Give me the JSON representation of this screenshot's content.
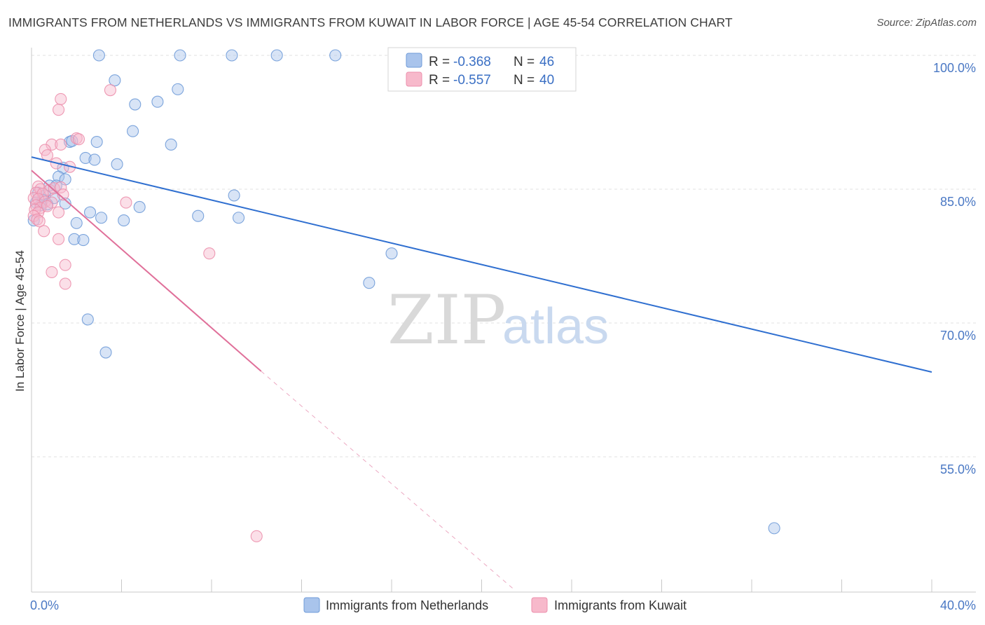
{
  "title": "IMMIGRANTS FROM NETHERLANDS VS IMMIGRANTS FROM KUWAIT IN LABOR FORCE | AGE 45-54 CORRELATION CHART",
  "source": "Source: ZipAtlas.com",
  "watermark": {
    "zip": "ZIP",
    "atlas": "atlas"
  },
  "chart_data": {
    "type": "scatter",
    "ylabel": "In Labor Force | Age 45-54",
    "xlim": [
      0,
      40
    ],
    "ylim": [
      40,
      101
    ],
    "x_tick_labels": [
      {
        "x": 0,
        "label": "0.0%"
      },
      {
        "x": 40,
        "label": "40.0%"
      }
    ],
    "y_tick_labels": [
      {
        "y": 100,
        "label": "100.0%"
      },
      {
        "y": 85,
        "label": "85.0%"
      },
      {
        "y": 70,
        "label": "70.0%"
      },
      {
        "y": 55,
        "label": "55.0%"
      }
    ],
    "grid": true,
    "legend": {
      "placement": "top-center",
      "rows": [
        {
          "r_label": "R =",
          "r_value": "-0.368",
          "n_label": "N =",
          "n_value": "46"
        },
        {
          "r_label": "R =",
          "r_value": "-0.557",
          "n_label": "N =",
          "n_value": "40"
        }
      ]
    },
    "series": [
      {
        "name": "Immigrants from Netherlands",
        "color": "#a9c4ec",
        "stroke": "#6f9bd8",
        "trend_color": "#2f6fd0",
        "trend": {
          "x0": 0,
          "y0": 88.6,
          "x1": 40,
          "y1": 64.5
        },
        "points": [
          [
            3.0,
            100
          ],
          [
            6.6,
            100
          ],
          [
            8.9,
            100
          ],
          [
            10.9,
            100
          ],
          [
            13.5,
            100
          ],
          [
            3.7,
            97.2
          ],
          [
            6.5,
            96.2
          ],
          [
            4.6,
            94.5
          ],
          [
            5.6,
            94.8
          ],
          [
            4.5,
            91.5
          ],
          [
            1.7,
            90.3
          ],
          [
            1.8,
            90.4
          ],
          [
            2.9,
            90.3
          ],
          [
            6.2,
            90
          ],
          [
            2.4,
            88.5
          ],
          [
            2.8,
            88.3
          ],
          [
            3.8,
            87.8
          ],
          [
            1.4,
            87.4
          ],
          [
            1.2,
            86.4
          ],
          [
            1.5,
            86.1
          ],
          [
            0.8,
            85.4
          ],
          [
            1.1,
            85.4
          ],
          [
            0.3,
            84.6
          ],
          [
            0.6,
            84.3
          ],
          [
            0.5,
            83.8
          ],
          [
            1.0,
            84.0
          ],
          [
            9.0,
            84.3
          ],
          [
            0.2,
            83.5
          ],
          [
            0.4,
            83.2
          ],
          [
            0.7,
            83.3
          ],
          [
            1.5,
            83.4
          ],
          [
            4.8,
            83.0
          ],
          [
            2.6,
            82.4
          ],
          [
            7.4,
            82.0
          ],
          [
            3.1,
            81.8
          ],
          [
            9.2,
            81.8
          ],
          [
            4.1,
            81.5
          ],
          [
            2.0,
            81.2
          ],
          [
            0.1,
            81.5
          ],
          [
            1.9,
            79.4
          ],
          [
            2.3,
            79.3
          ],
          [
            16.0,
            77.8
          ],
          [
            15.0,
            74.5
          ],
          [
            2.5,
            70.4
          ],
          [
            3.3,
            66.7
          ],
          [
            33.0,
            47.0
          ]
        ]
      },
      {
        "name": "Immigrants from Kuwait",
        "color": "#f7b9cb",
        "stroke": "#ec8fac",
        "trend_color": "#e0709a",
        "trend": {
          "x0": 0,
          "y0": 87.1,
          "x1": 10.2,
          "y1": 64.6
        },
        "trend_dashed": {
          "x0": 10.2,
          "y0": 64.6,
          "x1": 21.5,
          "y1": 40
        },
        "points": [
          [
            3.5,
            96.1
          ],
          [
            1.3,
            95.1
          ],
          [
            1.2,
            93.9
          ],
          [
            2.0,
            90.7
          ],
          [
            2.1,
            90.6
          ],
          [
            0.9,
            90.0
          ],
          [
            1.3,
            90.0
          ],
          [
            0.6,
            89.4
          ],
          [
            0.7,
            88.8
          ],
          [
            1.1,
            87.9
          ],
          [
            1.7,
            87.5
          ],
          [
            0.3,
            85.3
          ],
          [
            0.4,
            85.0
          ],
          [
            0.8,
            84.9
          ],
          [
            1.0,
            85.1
          ],
          [
            1.3,
            85.2
          ],
          [
            0.2,
            84.6
          ],
          [
            0.5,
            84.5
          ],
          [
            1.4,
            84.4
          ],
          [
            0.1,
            84.0
          ],
          [
            0.3,
            83.9
          ],
          [
            0.6,
            83.6
          ],
          [
            0.9,
            83.5
          ],
          [
            4.2,
            83.5
          ],
          [
            0.2,
            83.2
          ],
          [
            0.4,
            82.9
          ],
          [
            0.7,
            83.1
          ],
          [
            0.15,
            82.7
          ],
          [
            0.3,
            82.4
          ],
          [
            1.2,
            82.4
          ],
          [
            0.1,
            82.0
          ],
          [
            0.25,
            81.6
          ],
          [
            0.35,
            81.4
          ],
          [
            0.55,
            80.3
          ],
          [
            1.2,
            79.4
          ],
          [
            7.9,
            77.8
          ],
          [
            1.5,
            76.5
          ],
          [
            0.9,
            75.7
          ],
          [
            1.5,
            74.4
          ],
          [
            10.0,
            46.1
          ]
        ]
      }
    ]
  }
}
